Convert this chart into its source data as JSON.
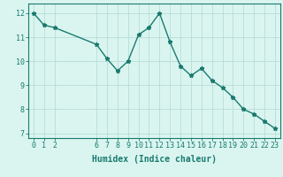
{
  "x": [
    0,
    1,
    2,
    6,
    7,
    8,
    9,
    10,
    11,
    12,
    13,
    14,
    15,
    16,
    17,
    18,
    19,
    20,
    21,
    22,
    23
  ],
  "y": [
    12.0,
    11.5,
    11.4,
    10.7,
    10.1,
    9.6,
    10.0,
    11.1,
    11.4,
    12.0,
    10.8,
    9.8,
    9.4,
    9.7,
    9.2,
    8.9,
    8.5,
    8.0,
    7.8,
    7.5,
    7.2
  ],
  "line_color": "#1a7a6e",
  "marker": "*",
  "bg_color": "#daf5f0",
  "grid_color": "#b8ddd8",
  "xlabel": "Humidex (Indice chaleur)",
  "xlim": [
    -0.5,
    23.5
  ],
  "ylim": [
    6.8,
    12.4
  ],
  "xticks": [
    0,
    1,
    2,
    6,
    7,
    8,
    9,
    10,
    11,
    12,
    13,
    14,
    15,
    16,
    17,
    18,
    19,
    20,
    21,
    22,
    23
  ],
  "yticks": [
    7,
    8,
    9,
    10,
    11,
    12
  ],
  "xlabel_fontsize": 7,
  "tick_fontsize": 6,
  "line_width": 1.0,
  "marker_size": 3.5
}
